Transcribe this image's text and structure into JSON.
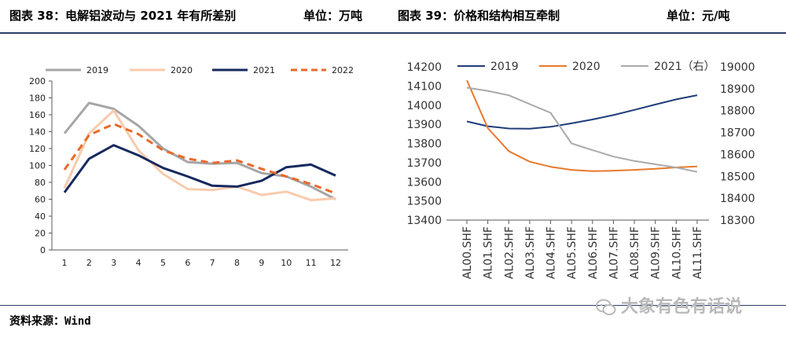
{
  "header": {
    "left_title": "图表 38：电解铝波动与 2021 年有所差别",
    "left_unit": "单位：万吨",
    "right_title": "图表 39：价格和结构相互牵制",
    "right_unit": "单位：元/吨"
  },
  "footer": {
    "source": "资料来源：Wind",
    "watermark": "大象有色有话说"
  },
  "chart_data": [
    {
      "type": "line",
      "title": "电解铝波动与 2021 年有所差别",
      "unit": "万吨",
      "categories": [
        "1",
        "2",
        "3",
        "4",
        "5",
        "6",
        "7",
        "8",
        "9",
        "10",
        "11",
        "12"
      ],
      "ylim": [
        0,
        200
      ],
      "yticks": [
        0,
        20,
        40,
        60,
        80,
        100,
        120,
        140,
        160,
        180,
        200
      ],
      "legend_position": "top",
      "series": [
        {
          "name": "2019",
          "color": "#a6a6a6",
          "dash": "solid",
          "values": [
            138,
            174,
            167,
            147,
            120,
            104,
            102,
            103,
            91,
            87,
            75,
            60
          ]
        },
        {
          "name": "2020",
          "color": "#f8cbad",
          "dash": "solid",
          "values": [
            73,
            138,
            165,
            118,
            90,
            72,
            71,
            75,
            65,
            69,
            59,
            61
          ]
        },
        {
          "name": "2021",
          "color": "#17295e",
          "dash": "solid",
          "values": [
            68,
            108,
            124,
            112,
            97,
            87,
            76,
            75,
            82,
            98,
            101,
            88
          ]
        },
        {
          "name": "2022",
          "color": "#e8692a",
          "dash": "dashed",
          "values": [
            95,
            136,
            149,
            137,
            118,
            108,
            103,
            106,
            96,
            87,
            78,
            67
          ]
        }
      ]
    },
    {
      "type": "line",
      "title": "价格和结构相互牵制",
      "unit": "元/吨",
      "categories": [
        "AL00.SHF",
        "AL01.SHF",
        "AL02.SHF",
        "AL03.SHF",
        "AL04.SHF",
        "AL05.SHF",
        "AL06.SHF",
        "AL07.SHF",
        "AL08.SHF",
        "AL09.SHF",
        "AL10.SHF",
        "AL11.SHF"
      ],
      "ylim_left": [
        13400,
        14200
      ],
      "yticks_left": [
        13400,
        13500,
        13600,
        13700,
        13800,
        13900,
        14000,
        14100,
        14200
      ],
      "ylim_right": [
        18300,
        19000
      ],
      "yticks_right": [
        18300,
        18400,
        18500,
        18600,
        18700,
        18800,
        18900,
        19000
      ],
      "legend_position": "top",
      "series": [
        {
          "name": "2019",
          "axis": "left",
          "color": "#1f3d7a",
          "values": [
            13915,
            13890,
            13878,
            13877,
            13887,
            13905,
            13925,
            13948,
            13975,
            14003,
            14030,
            14052
          ]
        },
        {
          "name": "2020",
          "axis": "left",
          "color": "#e8792e",
          "values": [
            14130,
            13880,
            13760,
            13705,
            13678,
            13662,
            13655,
            13658,
            13662,
            13668,
            13675,
            13680
          ]
        },
        {
          "name": "2021（右）",
          "axis": "right",
          "color": "#aaaaaa",
          "values": [
            18905,
            18890,
            18870,
            18830,
            18790,
            18650,
            18620,
            18590,
            18570,
            18555,
            18540,
            18520
          ]
        }
      ]
    }
  ]
}
